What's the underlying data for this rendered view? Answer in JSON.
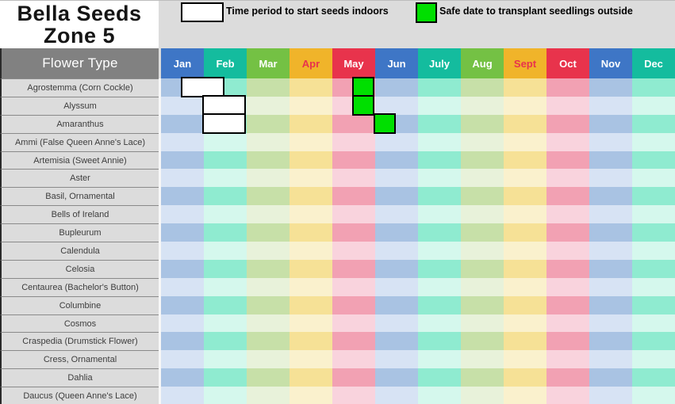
{
  "title": {
    "line1": "Bella Seeds",
    "line2": "Zone 5"
  },
  "legend": {
    "start_indoors": "Time period to start seeds indoors",
    "transplant": "Safe date to transplant seedlings outside"
  },
  "table": {
    "header_label": "Flower Type",
    "months": [
      {
        "label": "Jan",
        "palette": "blue",
        "text_color": "#ffffff"
      },
      {
        "label": "Feb",
        "palette": "teal",
        "text_color": "#ffffff"
      },
      {
        "label": "Mar",
        "palette": "green",
        "text_color": "#ffffff"
      },
      {
        "label": "Apr",
        "palette": "yellow",
        "text_color": "#e8334c"
      },
      {
        "label": "May",
        "palette": "red",
        "text_color": "#ffffff"
      },
      {
        "label": "Jun",
        "palette": "blue",
        "text_color": "#ffffff"
      },
      {
        "label": "July",
        "palette": "teal",
        "text_color": "#ffffff"
      },
      {
        "label": "Aug",
        "palette": "green",
        "text_color": "#ffffff"
      },
      {
        "label": "Sept",
        "palette": "yellow",
        "text_color": "#e8334c"
      },
      {
        "label": "Oct",
        "palette": "red",
        "text_color": "#ffffff"
      },
      {
        "label": "Nov",
        "palette": "blue",
        "text_color": "#ffffff"
      },
      {
        "label": "Dec",
        "palette": "teal",
        "text_color": "#ffffff"
      }
    ],
    "rows": [
      "Agrostemma (Corn Cockle)",
      "Alyssum",
      "Amaranthus",
      "Ammi (False Queen Anne's Lace)",
      "Artemisia (Sweet Annie)",
      "Aster",
      "Basil, Ornamental",
      "Bells of Ireland",
      "Bupleurum",
      "Calendula",
      "Celosia",
      "Centaurea (Bachelor's Button)",
      "Columbine",
      "Cosmos",
      "Craspedia (Drumstick Flower)",
      "Cress, Ornamental",
      "Dahlia",
      "Daucus (Queen Anne's Lace)"
    ]
  },
  "colors": {
    "page_bg": "#dcdcdc",
    "title_bg": "#ffffff",
    "corner_bg": "#818181",
    "label_bg": "#dcdcdc",
    "label_border": "#8a8a8a",
    "transplant_green": "#00df00",
    "month_palette": {
      "blue": {
        "header": "#3e76c6",
        "odd": "#a9c3e3",
        "even": "#d7e3f4"
      },
      "teal": {
        "header": "#14bc9e",
        "odd": "#8febd0",
        "even": "#d5f8ed"
      },
      "green": {
        "header": "#74c144",
        "odd": "#c7e0a8",
        "even": "#e8f2da"
      },
      "yellow": {
        "header": "#f0b42a",
        "odd": "#f6e196",
        "even": "#faf1cd"
      },
      "red": {
        "header": "#e8334c",
        "odd": "#f2a1b3",
        "even": "#f9d3dd"
      }
    }
  },
  "markers": {
    "start_indoors": [
      {
        "row": 0,
        "from": 0.5,
        "to": 1.5
      },
      {
        "row": 1,
        "from": 1.0,
        "to": 2.0
      },
      {
        "row": 2,
        "from": 1.0,
        "to": 2.0
      }
    ],
    "transplant": [
      {
        "row": 0,
        "from": 4.5,
        "to": 5.0
      },
      {
        "row": 1,
        "from": 4.5,
        "to": 5.0
      },
      {
        "row": 2,
        "from": 5.0,
        "to": 5.5
      }
    ]
  },
  "chart_data": {
    "type": "table",
    "title": "Bella Seeds Zone 5",
    "legend": [
      "Time period to start seeds indoors",
      "Safe date to transplant seedlings outside"
    ],
    "columns": [
      "Jan",
      "Feb",
      "Mar",
      "Apr",
      "May",
      "Jun",
      "July",
      "Aug",
      "Sept",
      "Oct",
      "Nov",
      "Dec"
    ],
    "rows": [
      "Agrostemma (Corn Cockle)",
      "Alyssum",
      "Amaranthus",
      "Ammi (False Queen Anne's Lace)",
      "Artemisia (Sweet Annie)",
      "Aster",
      "Basil, Ornamental",
      "Bells of Ireland",
      "Bupleurum",
      "Calendula",
      "Celosia",
      "Centaurea (Bachelor's Button)",
      "Columbine",
      "Cosmos",
      "Craspedia (Drumstick Flower)",
      "Cress, Ornamental",
      "Dahlia",
      "Daucus (Queen Anne's Lace)"
    ],
    "series": [
      {
        "name": "start_seeds_indoors",
        "entries": [
          {
            "flower": "Agrostemma (Corn Cockle)",
            "span_months": [
              0.5,
              1.5
            ],
            "label": "mid-Jan to mid-Feb"
          },
          {
            "flower": "Alyssum",
            "span_months": [
              1.0,
              2.0
            ],
            "label": "Feb"
          },
          {
            "flower": "Amaranthus",
            "span_months": [
              1.0,
              2.0
            ],
            "label": "Feb"
          }
        ]
      },
      {
        "name": "transplant_outside",
        "entries": [
          {
            "flower": "Agrostemma (Corn Cockle)",
            "span_months": [
              4.5,
              5.0
            ],
            "label": "second half of May"
          },
          {
            "flower": "Alyssum",
            "span_months": [
              4.5,
              5.0
            ],
            "label": "second half of May"
          },
          {
            "flower": "Amaranthus",
            "span_months": [
              5.0,
              5.5
            ],
            "label": "first half of June"
          }
        ]
      }
    ]
  }
}
